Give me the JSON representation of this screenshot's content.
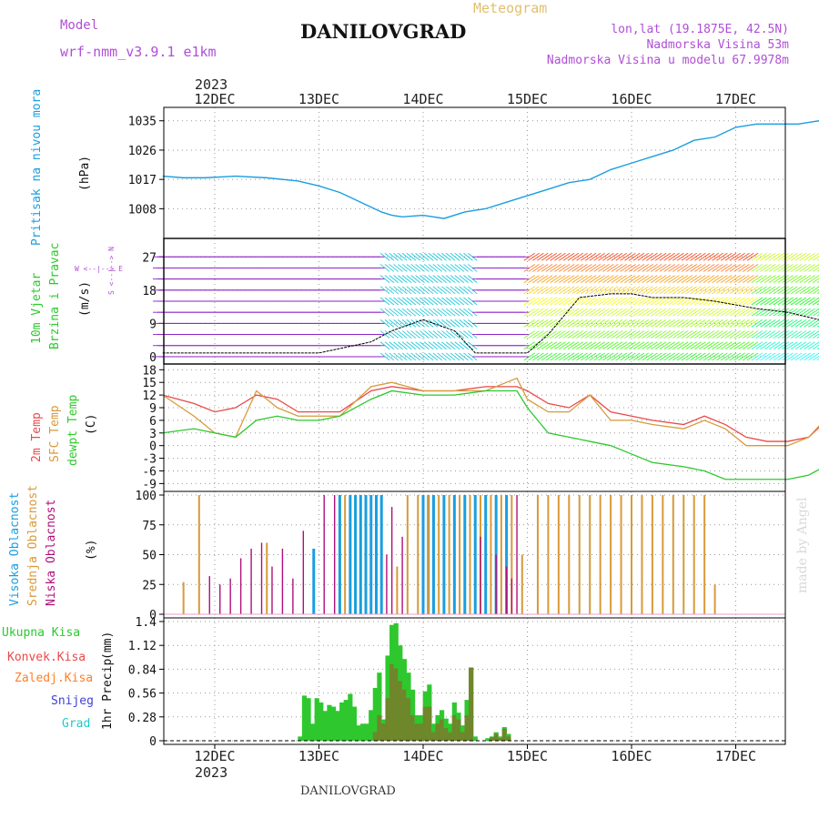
{
  "header": {
    "model_label": "Model",
    "model_name": "wrf-nmm_v3.9.1 e1km",
    "title": "DANILOVGRAD",
    "meteogram_label": "Meteogram",
    "lonlat": "lon,lat (19.1875E, 42.5N)",
    "altitude": "Nadmorska Visina 53m",
    "model_altitude": "Nadmorska Visina u modelu 67.9978m",
    "footer": "DANILOVGRAD",
    "watermark": "made by Angel",
    "year_top": "2023",
    "year_bottom": "2023"
  },
  "colors": {
    "pressure": "#1a9ee0",
    "temp2m": "#e84a4a",
    "sfc": "#d89a3a",
    "dewpt": "#2ec82e",
    "high_cloud": "#1a9ee0",
    "mid_cloud": "#d89a3a",
    "low_cloud": "#b0107a",
    "total_precip": "#2ec82e",
    "conv_precip": "#e84a4a",
    "frozen": "#ff7f27",
    "snow": "#4040d8",
    "graupel": "#22c8c8",
    "wind_purple": "#8a1ec8",
    "wind_cyan": "#22c8d8"
  },
  "chart_data": [
    {
      "id": "pressure",
      "type": "line",
      "ylabel_main": "Pritisak na nivou mora",
      "ylabel_unit": "(hPa)",
      "x_ticks": [
        "12DEC",
        "13DEC",
        "14DEC",
        "15DEC",
        "16DEC",
        "17DEC"
      ],
      "ylim": [
        1000,
        1038
      ],
      "yticks": [
        1008,
        1017,
        1026,
        1035
      ],
      "grid": true,
      "x_days": [
        -0.5,
        -0.3,
        -0.1,
        0.2,
        0.5,
        0.8,
        1.0,
        1.2,
        1.4,
        1.6,
        1.7,
        1.8,
        2.0,
        2.2,
        2.4,
        2.6,
        2.8,
        3.0,
        3.2,
        3.4,
        3.6,
        3.8,
        4.0,
        4.2,
        4.4,
        4.6,
        4.8,
        5.0,
        5.2,
        5.4,
        5.6,
        5.8,
        6.0
      ],
      "values": [
        1018,
        1017.5,
        1017.5,
        1018,
        1017.5,
        1016.5,
        1015,
        1013,
        1010,
        1007,
        1006,
        1005.5,
        1006,
        1005,
        1007,
        1008,
        1010,
        1012,
        1014,
        1016,
        1017,
        1020,
        1022,
        1024,
        1026,
        1029,
        1030,
        1033,
        1034,
        1034,
        1034,
        1035,
        1033
      ]
    },
    {
      "id": "wind",
      "type": "area",
      "ylabel_main": "10m Vjetar",
      "ylabel_sub": "Brzina i Pravac",
      "ylabel_unit": "(m/s)",
      "compass_label": "W  <--|-->  E",
      "compass_v": "S <--|--> N",
      "ylim": [
        -1,
        31
      ],
      "yticks": [
        0,
        9,
        18,
        27
      ],
      "grid": true,
      "x_days": [
        -0.5,
        0,
        0.5,
        1,
        1.5,
        1.7,
        2.0,
        2.3,
        2.5,
        3.0,
        3.2,
        3.5,
        3.8,
        4.0,
        4.2,
        4.5,
        4.8,
        5.0,
        5.2,
        5.5,
        5.8,
        6.0
      ],
      "speed": [
        1,
        1,
        1,
        1,
        4,
        7,
        10,
        7,
        1,
        1,
        6,
        16,
        17,
        17,
        16,
        16,
        15,
        14,
        13,
        12,
        10,
        8
      ]
    },
    {
      "id": "temperature",
      "type": "line",
      "ylabel_lines": [
        "2m Temp",
        "SFC Temp",
        "dewpt Temp"
      ],
      "ylabel_unit": "(C)",
      "ylim": [
        -10,
        18.5
      ],
      "yticks": [
        -9,
        -6,
        -3,
        0,
        3,
        6,
        9,
        12,
        15,
        18
      ],
      "grid": true,
      "series": [
        {
          "name": "2m Temp",
          "x": [
            -0.5,
            -0.2,
            0.0,
            0.2,
            0.4,
            0.6,
            0.8,
            1.0,
            1.2,
            1.5,
            1.7,
            2.0,
            2.3,
            2.6,
            2.9,
            3.0,
            3.2,
            3.4,
            3.6,
            3.8,
            4.0,
            4.2,
            4.5,
            4.7,
            4.9,
            5.1,
            5.3,
            5.5,
            5.7,
            6.0
          ],
          "values": [
            12,
            10,
            8,
            9,
            12,
            11,
            8,
            8,
            8,
            13,
            14,
            13,
            13,
            14,
            14,
            13,
            10,
            9,
            12,
            8,
            7,
            6,
            5,
            7,
            5,
            2,
            1,
            1,
            2,
            9
          ]
        },
        {
          "name": "SFC Temp",
          "x": [
            -0.5,
            -0.2,
            0.0,
            0.2,
            0.4,
            0.6,
            0.8,
            1.0,
            1.2,
            1.5,
            1.7,
            2.0,
            2.3,
            2.6,
            2.9,
            3.0,
            3.2,
            3.4,
            3.6,
            3.8,
            4.0,
            4.2,
            4.5,
            4.7,
            4.9,
            5.1,
            5.3,
            5.5,
            5.7,
            6.0
          ],
          "values": [
            12,
            7,
            3,
            2,
            13,
            9,
            7,
            7,
            7,
            14,
            15,
            13,
            13,
            13,
            16,
            11,
            8,
            8,
            12,
            6,
            6,
            5,
            4,
            6,
            4,
            0,
            0,
            0,
            2,
            10
          ]
        },
        {
          "name": "dewpt Temp",
          "x": [
            -0.5,
            -0.2,
            0.0,
            0.2,
            0.4,
            0.6,
            0.8,
            1.0,
            1.2,
            1.5,
            1.7,
            2.0,
            2.3,
            2.6,
            2.9,
            3.0,
            3.2,
            3.4,
            3.6,
            3.8,
            4.0,
            4.2,
            4.5,
            4.7,
            4.9,
            5.1,
            5.3,
            5.5,
            5.7,
            6.0
          ],
          "values": [
            3,
            4,
            3,
            2,
            6,
            7,
            6,
            6,
            7,
            11,
            13,
            12,
            12,
            13,
            13,
            9,
            3,
            2,
            1,
            0,
            -2,
            -4,
            -5,
            -6,
            -8,
            -8,
            -8,
            -8,
            -7,
            -3
          ]
        }
      ]
    },
    {
      "id": "clouds",
      "type": "bar",
      "ylabel_lines": [
        "Visoka Oblacnost",
        "Srednja Oblacnost",
        "Niska Oblacnost"
      ],
      "ylabel_unit": "(%)",
      "ylim": [
        0,
        100
      ],
      "yticks": [
        0,
        25,
        50,
        75,
        100
      ],
      "grid": true,
      "series": [
        {
          "name": "Visoka Oblacnost",
          "x": [
            0.95,
            1.2,
            1.3,
            1.35,
            1.4,
            1.45,
            1.5,
            1.55,
            1.6,
            2.0,
            2.05,
            2.1,
            2.2,
            2.3,
            2.4,
            2.5,
            2.6,
            2.7,
            2.8
          ],
          "values": [
            55,
            100,
            100,
            100,
            100,
            100,
            100,
            100,
            100,
            100,
            100,
            100,
            100,
            100,
            100,
            100,
            100,
            100,
            100
          ]
        },
        {
          "name": "Srednja Oblacnost",
          "x": [
            -0.3,
            -0.15,
            0.5,
            1.25,
            1.75,
            1.85,
            1.95,
            2.05,
            2.15,
            2.25,
            2.35,
            2.45,
            2.55,
            2.65,
            2.75,
            2.85,
            2.95,
            3.1,
            3.2,
            3.3,
            3.4,
            3.5,
            3.6,
            3.7,
            3.8,
            3.9,
            4.0,
            4.1,
            4.2,
            4.3,
            4.4,
            4.5,
            4.6,
            4.7,
            4.8
          ],
          "values": [
            27,
            100,
            60,
            100,
            40,
            100,
            100,
            100,
            100,
            100,
            100,
            100,
            100,
            100,
            100,
            100,
            50,
            100,
            100,
            100,
            100,
            100,
            100,
            100,
            100,
            100,
            100,
            100,
            100,
            100,
            100,
            100,
            100,
            100,
            25
          ]
        },
        {
          "name": "Niska Oblacnost",
          "x": [
            -0.05,
            0.05,
            0.15,
            0.25,
            0.35,
            0.45,
            0.55,
            0.65,
            0.75,
            0.85,
            1.05,
            1.15,
            1.65,
            1.7,
            1.8,
            2.55,
            2.7,
            2.8,
            2.85,
            2.9
          ],
          "values": [
            32,
            25,
            30,
            47,
            55,
            60,
            40,
            55,
            30,
            70,
            100,
            100,
            50,
            90,
            65,
            65,
            50,
            40,
            30,
            100
          ]
        }
      ]
    },
    {
      "id": "precip",
      "type": "bar",
      "ylabel_main": "1hr Precip",
      "ylabel_unit": "(mm)",
      "legend": [
        "Ukupna Kisa",
        "Konvek.Kisa",
        "Zaledj.Kisa",
        "Snijeg",
        "Grad"
      ],
      "x_ticks": [
        "12DEC",
        "13DEC",
        "14DEC",
        "15DEC",
        "16DEC",
        "17DEC"
      ],
      "ylim": [
        0,
        1.4
      ],
      "yticks": [
        0,
        0.28,
        0.56,
        0.84,
        1.12,
        1.4
      ],
      "ytick_labels": [
        "0",
        "0.28",
        "0.56",
        "0.84",
        "1.12",
        "1.4"
      ],
      "grid": true,
      "x_days": [
        0.82,
        0.86,
        0.9,
        0.94,
        0.98,
        1.02,
        1.06,
        1.1,
        1.14,
        1.18,
        1.22,
        1.26,
        1.3,
        1.34,
        1.38,
        1.42,
        1.46,
        1.5,
        1.54,
        1.58,
        1.62,
        1.66,
        1.7,
        1.74,
        1.78,
        1.82,
        1.86,
        1.9,
        1.94,
        1.98,
        2.02,
        2.06,
        2.1,
        2.14,
        2.18,
        2.22,
        2.26,
        2.3,
        2.34,
        2.38,
        2.42,
        2.46,
        2.5,
        2.62,
        2.66,
        2.7,
        2.74,
        2.78,
        2.82
      ],
      "values": [
        0.05,
        0.53,
        0.5,
        0.2,
        0.5,
        0.45,
        0.35,
        0.42,
        0.4,
        0.35,
        0.45,
        0.48,
        0.55,
        0.4,
        0.18,
        0.2,
        0.2,
        0.36,
        0.62,
        0.8,
        0.25,
        1.0,
        1.36,
        1.38,
        1.12,
        0.96,
        0.8,
        0.6,
        0.3,
        0.3,
        0.58,
        0.66,
        0.2,
        0.3,
        0.36,
        0.26,
        0.2,
        0.45,
        0.33,
        0.18,
        0.48,
        0.86,
        0.05,
        0.03,
        0.05,
        0.1,
        0.05,
        0.16,
        0.08
      ],
      "conv_values": [
        0,
        0,
        0,
        0,
        0,
        0,
        0,
        0,
        0,
        0,
        0,
        0,
        0,
        0,
        0,
        0,
        0,
        0,
        0.1,
        0.3,
        0.2,
        0.5,
        0.9,
        0.85,
        0.7,
        0.6,
        0.5,
        0.3,
        0.2,
        0.2,
        0.4,
        0.4,
        0.1,
        0.2,
        0.25,
        0.15,
        0.1,
        0.3,
        0.25,
        0.1,
        0.3,
        0.86,
        0,
        0,
        0.04,
        0.08,
        0.03,
        0.14,
        0.05
      ]
    }
  ]
}
